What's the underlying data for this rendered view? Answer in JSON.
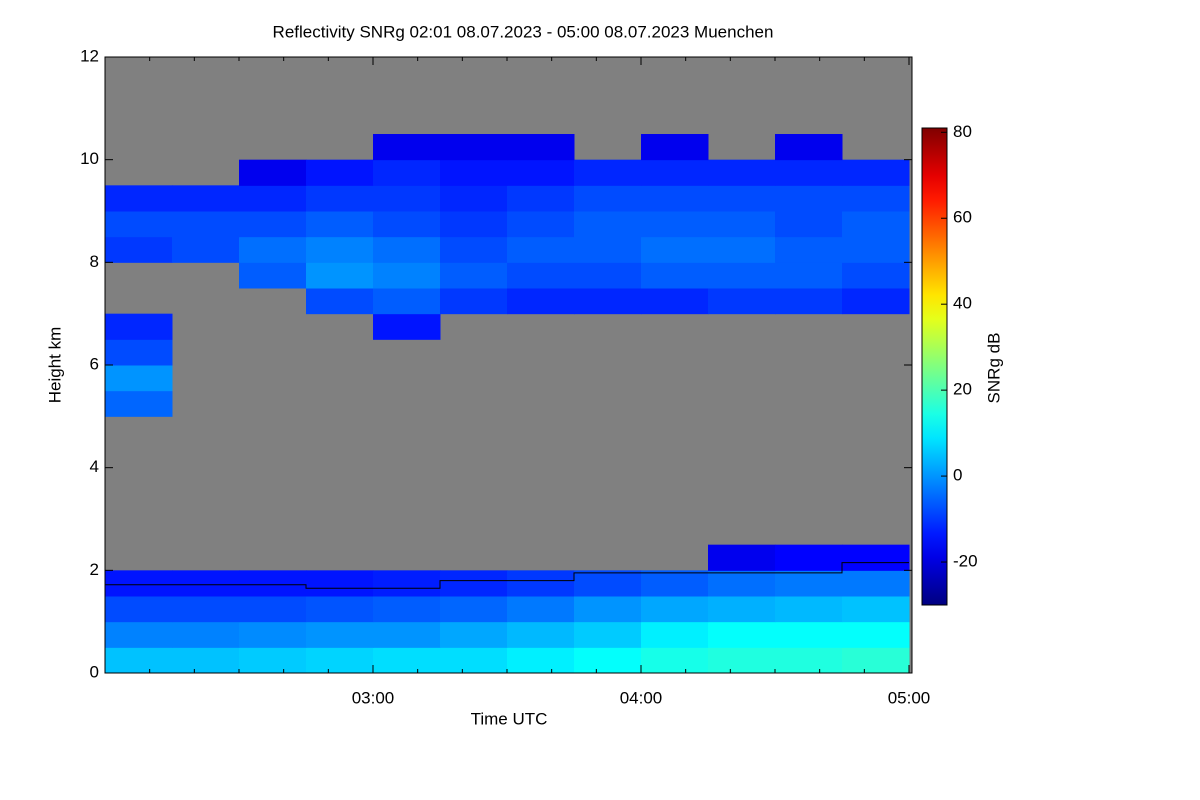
{
  "chart_data": {
    "type": "heatmap",
    "title": "Reflectivity SNRg   02:01 08.07.2023 - 05:00 08.07.2023 Muenchen",
    "xlabel": "Time UTC",
    "ylabel": "Height km",
    "xlim": [
      2,
      5
    ],
    "xticks": [
      {
        "value": 3,
        "label": "03:00"
      },
      {
        "value": 4,
        "label": "04:00"
      },
      {
        "value": 5,
        "label": "05:00"
      }
    ],
    "ylim": [
      0,
      12
    ],
    "yticks": [
      0,
      2,
      4,
      6,
      8,
      10,
      12
    ],
    "x_edges": [
      2,
      2.25,
      2.5,
      2.75,
      3,
      3.25,
      3.5,
      3.75,
      4,
      4.25,
      4.5,
      4.75,
      5
    ],
    "y_edges": [
      0,
      0.5,
      1,
      1.5,
      2,
      2.5,
      3,
      3.5,
      4,
      4.5,
      5,
      5.5,
      6,
      6.5,
      7,
      7.5,
      8,
      8.5,
      9,
      9.5,
      10,
      10.5,
      11,
      11.5,
      12
    ],
    "z": [
      [
        5,
        5,
        6,
        7,
        8,
        8,
        10,
        12,
        14,
        15,
        15,
        16
      ],
      [
        -2,
        -2,
        -1,
        0,
        0,
        2,
        4,
        6,
        10,
        12,
        12,
        12
      ],
      [
        -8,
        -8,
        -8,
        -7,
        -6,
        -5,
        -3,
        0,
        2,
        3,
        4,
        5
      ],
      [
        -14,
        -14,
        -14,
        -14,
        -13,
        -12,
        -10,
        -8,
        -6,
        -4,
        -3,
        -3
      ],
      [
        null,
        null,
        null,
        null,
        null,
        null,
        null,
        null,
        null,
        -18,
        -16,
        -16
      ],
      [
        null,
        null,
        null,
        null,
        null,
        null,
        null,
        null,
        null,
        null,
        null,
        null
      ],
      [
        null,
        null,
        null,
        null,
        null,
        null,
        null,
        null,
        null,
        null,
        null,
        null
      ],
      [
        null,
        null,
        null,
        null,
        null,
        null,
        null,
        null,
        null,
        null,
        null,
        null
      ],
      [
        null,
        null,
        null,
        null,
        null,
        null,
        null,
        null,
        null,
        null,
        null,
        null
      ],
      [
        null,
        null,
        null,
        null,
        null,
        null,
        null,
        null,
        null,
        null,
        null,
        null
      ],
      [
        -5,
        null,
        null,
        null,
        null,
        null,
        null,
        null,
        null,
        null,
        null,
        null
      ],
      [
        0,
        null,
        null,
        null,
        null,
        null,
        null,
        null,
        null,
        null,
        null,
        null
      ],
      [
        -8,
        null,
        null,
        null,
        null,
        null,
        null,
        null,
        null,
        null,
        null,
        null
      ],
      [
        -12,
        null,
        null,
        null,
        -14,
        null,
        null,
        null,
        null,
        null,
        null,
        null
      ],
      [
        null,
        null,
        null,
        -8,
        -6,
        -10,
        -12,
        -12,
        -12,
        -10,
        -10,
        -12
      ],
      [
        null,
        null,
        -6,
        0,
        -2,
        -6,
        -8,
        -8,
        -6,
        -6,
        -6,
        -8
      ],
      [
        -10,
        -8,
        -4,
        -2,
        -4,
        -8,
        -6,
        -6,
        -4,
        -4,
        -6,
        -6
      ],
      [
        -8,
        -8,
        -8,
        -6,
        -8,
        -10,
        -8,
        -6,
        -6,
        -6,
        -8,
        -6
      ],
      [
        -12,
        -12,
        -12,
        -10,
        -10,
        -12,
        -10,
        -8,
        -8,
        -8,
        -8,
        -8
      ],
      [
        null,
        null,
        -18,
        -14,
        -12,
        -14,
        -14,
        -12,
        -12,
        -12,
        -12,
        -12
      ],
      [
        null,
        null,
        null,
        null,
        -18,
        -18,
        -18,
        null,
        -18,
        null,
        -18,
        null
      ],
      [
        null,
        null,
        null,
        null,
        null,
        null,
        null,
        null,
        null,
        null,
        null,
        null
      ],
      [
        null,
        null,
        null,
        null,
        null,
        null,
        null,
        null,
        null,
        null,
        null,
        null
      ],
      [
        null,
        null,
        null,
        null,
        null,
        null,
        null,
        null,
        null,
        null,
        null,
        null
      ]
    ],
    "missing_color": "#808080",
    "colormap": "jet",
    "clim": [
      -30,
      81
    ],
    "colorbar_label": "SNRg dB",
    "colorbar_ticks": [
      -20,
      0,
      20,
      40,
      60,
      80
    ],
    "line": {
      "color": "#000000",
      "x": [
        2,
        2.75,
        2.75,
        3.25,
        3.25,
        3.75,
        3.75,
        4.75,
        4.75,
        5
      ],
      "y": [
        1.72,
        1.72,
        1.65,
        1.65,
        1.8,
        1.8,
        1.95,
        1.95,
        2.15,
        2.15
      ]
    }
  }
}
